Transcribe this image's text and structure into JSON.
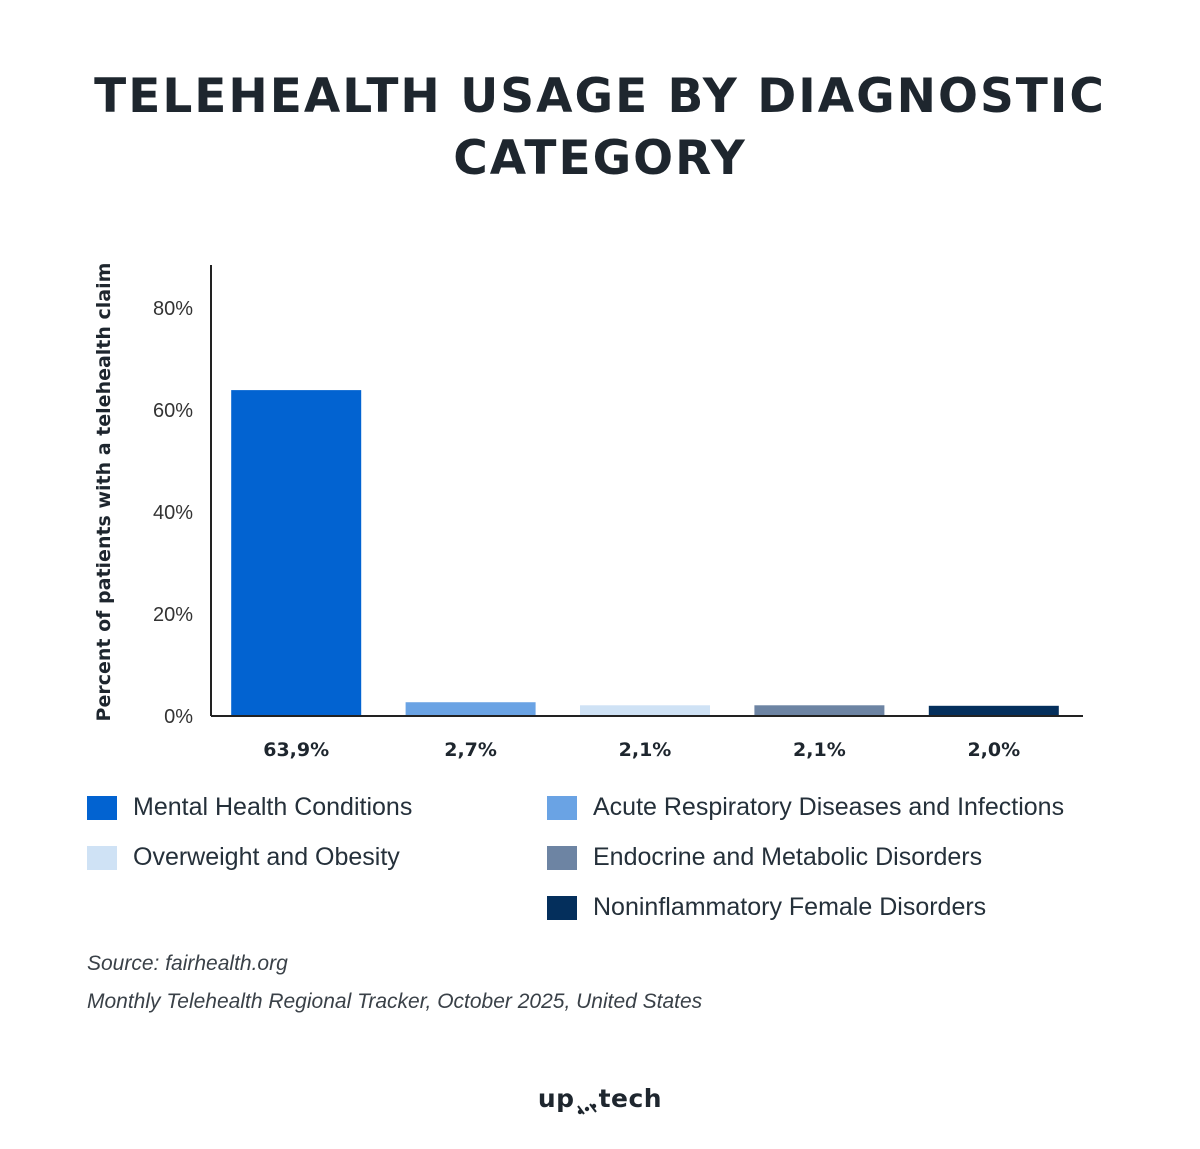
{
  "title_line1": "TELEHEALTH USAGE BY DIAGNOSTIC",
  "title_line2": "CATEGORY",
  "chart_data": {
    "type": "bar",
    "title": "TELEHEALTH USAGE BY DIAGNOSTIC CATEGORY",
    "ylabel": "Percent of patients with a telehealth claim",
    "ylim": [
      0,
      88
    ],
    "yticks": [
      0,
      20,
      40,
      60,
      80
    ],
    "ytick_labels": [
      "0%",
      "20%",
      "40%",
      "60%",
      "80%"
    ],
    "categories": [
      "Mental Health Conditions",
      "Acute Respiratory Diseases and Infections",
      "Overweight and Obesity",
      "Endocrine and Metabolic Disorders",
      "Noninflammatory Female Disorders"
    ],
    "values": [
      63.9,
      2.7,
      2.1,
      2.1,
      2.0
    ],
    "value_labels": [
      "63,9%",
      "2,7%",
      "2,1%",
      "2,1%",
      "2,0%"
    ],
    "colors": [
      "#0263d1",
      "#6aa3e4",
      "#cfe2f5",
      "#6d84a3",
      "#042f5c"
    ],
    "legend_position": "bottom",
    "grid": false
  },
  "legend": [
    {
      "label": "Mental Health Conditions",
      "color": "#0263d1"
    },
    {
      "label": "Acute Respiratory Diseases and Infections",
      "color": "#6aa3e4"
    },
    {
      "label": "Overweight and Obesity",
      "color": "#cfe2f5"
    },
    {
      "label": "Endocrine and Metabolic Disorders",
      "color": "#6d84a3"
    },
    {
      "label": "Noninflammatory Female Disorders",
      "color": "#042f5c"
    }
  ],
  "source": "Source: fairhealth.org",
  "tracker": "Monthly Telehealth Regional Tracker, October 2025, United States",
  "logo_left": "up",
  "logo_right": "tech"
}
